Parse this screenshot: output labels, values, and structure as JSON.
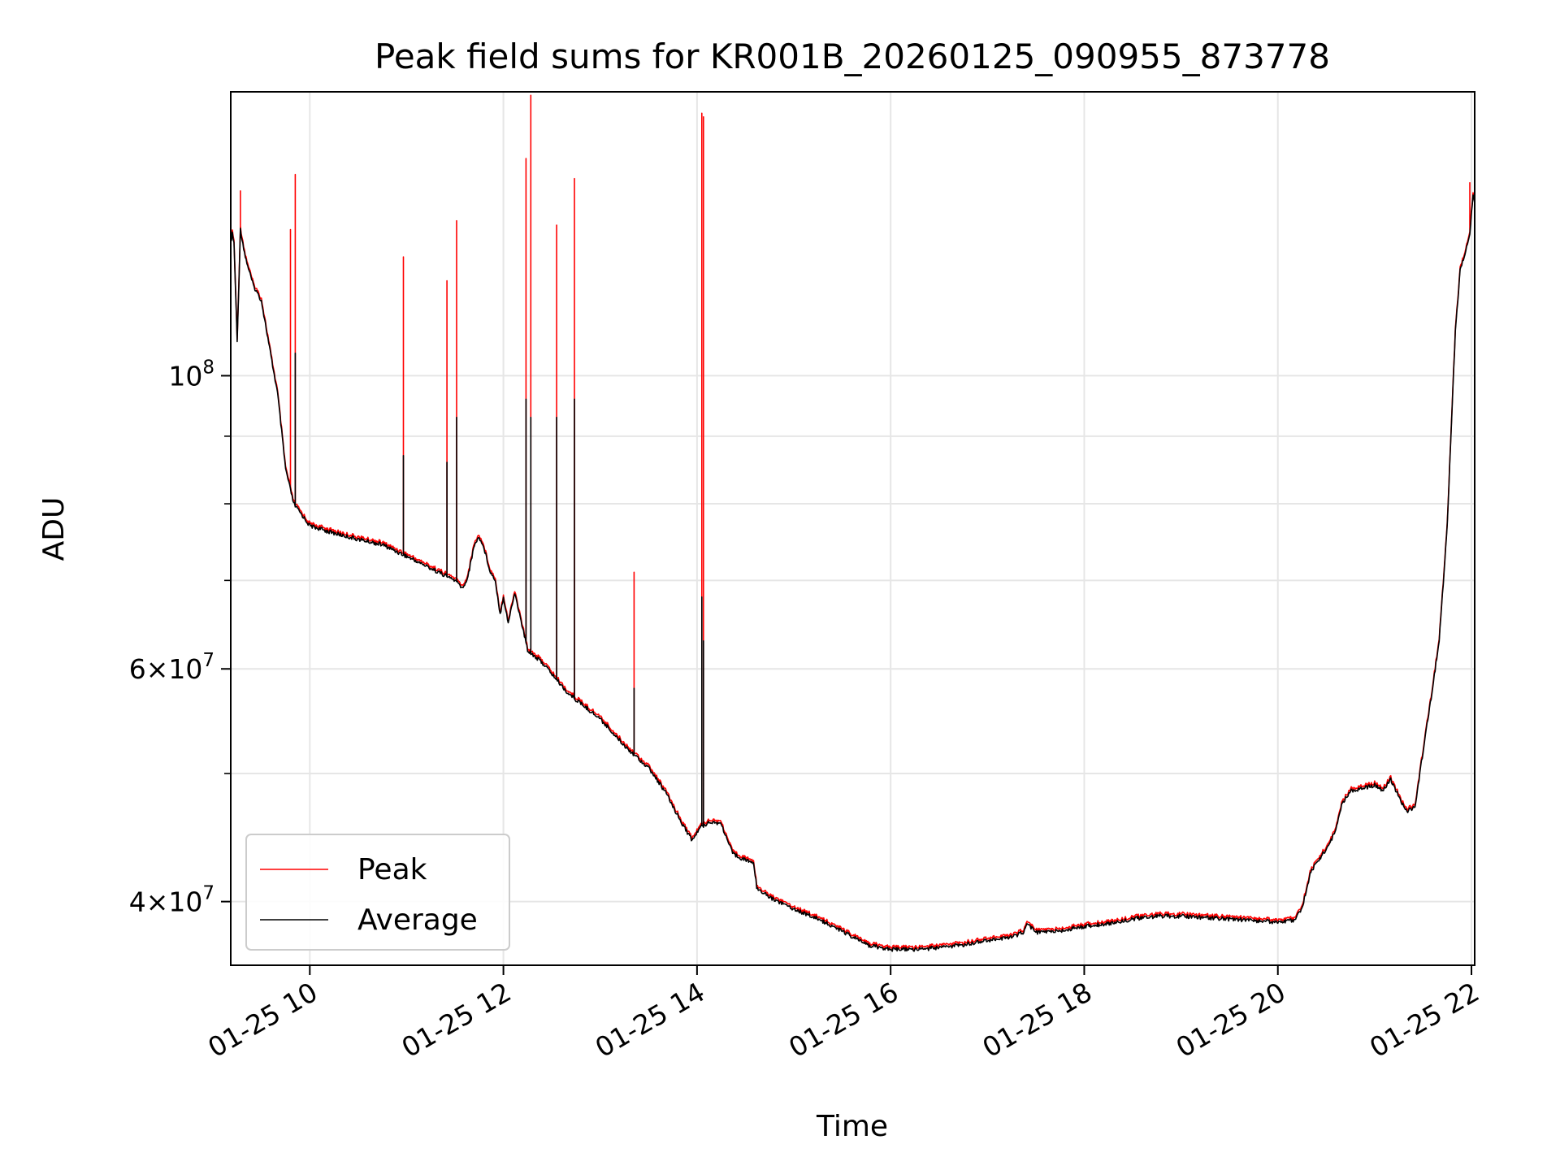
{
  "chart_data": {
    "type": "line",
    "title": "Peak field sums for KR001B_20260125_090955_873778",
    "xlabel": "Time",
    "ylabel": "ADU",
    "yscale": "log",
    "ylim": [
      35800000,
      164000000
    ],
    "xlim": [
      "01-25 09:11",
      "01-25 22:02"
    ],
    "grid": true,
    "legend_position": "lower left",
    "x_ticks": [
      {
        "t": "01-25 10:00",
        "label": "01-25 10"
      },
      {
        "t": "01-25 12:00",
        "label": "01-25 12"
      },
      {
        "t": "01-25 14:00",
        "label": "01-25 14"
      },
      {
        "t": "01-25 16:00",
        "label": "01-25 16"
      },
      {
        "t": "01-25 18:00",
        "label": "01-25 18"
      },
      {
        "t": "01-25 20:00",
        "label": "01-25 20"
      },
      {
        "t": "01-25 22:00",
        "label": "01-25 22"
      }
    ],
    "y_ticks": [
      {
        "value": 40000000,
        "mantissa": "4",
        "exp": "7"
      },
      {
        "value": 60000000,
        "mantissa": "6",
        "exp": "7"
      },
      {
        "value": 100000000,
        "mantissa": "",
        "exp": "8"
      }
    ],
    "y_minor_ticks": [
      50000000,
      70000000,
      80000000,
      90000000
    ],
    "series": [
      {
        "name": "Average",
        "color": "#000000",
        "points": [
          [
            "01-25 09:11",
            126000000
          ],
          [
            "01-25 09:12",
            128000000
          ],
          [
            "01-25 09:13",
            126000000
          ],
          [
            "01-25 09:15",
            106000000
          ],
          [
            "01-25 09:17",
            129000000
          ],
          [
            "01-25 09:20",
            123000000
          ],
          [
            "01-25 09:25",
            117000000
          ],
          [
            "01-25 09:30",
            114000000
          ],
          [
            "01-25 09:35",
            105000000
          ],
          [
            "01-25 09:40",
            97000000
          ],
          [
            "01-25 09:45",
            85000000
          ],
          [
            "01-25 09:50",
            80000000
          ],
          [
            "01-25 10:00",
            77000000
          ],
          [
            "01-25 10:15",
            76000000
          ],
          [
            "01-25 10:30",
            75200000
          ],
          [
            "01-25 10:45",
            74500000
          ],
          [
            "01-25 11:00",
            73000000
          ],
          [
            "01-25 11:15",
            71500000
          ],
          [
            "01-25 11:30",
            70000000
          ],
          [
            "01-25 11:35",
            69000000
          ],
          [
            "01-25 11:38",
            70500000
          ],
          [
            "01-25 11:42",
            74500000
          ],
          [
            "01-25 11:45",
            75500000
          ],
          [
            "01-25 11:48",
            74000000
          ],
          [
            "01-25 11:52",
            71000000
          ],
          [
            "01-25 11:55",
            70000000
          ],
          [
            "01-25 11:58",
            66000000
          ],
          [
            "01-25 12:00",
            68000000
          ],
          [
            "01-25 12:03",
            65000000
          ],
          [
            "01-25 12:07",
            68500000
          ],
          [
            "01-25 12:10",
            66000000
          ],
          [
            "01-25 12:15",
            62000000
          ],
          [
            "01-25 12:25",
            60500000
          ],
          [
            "01-25 12:40",
            57500000
          ],
          [
            "01-25 13:00",
            55000000
          ],
          [
            "01-25 13:15",
            52500000
          ],
          [
            "01-25 13:30",
            50500000
          ],
          [
            "01-25 13:40",
            48500000
          ],
          [
            "01-25 13:50",
            46000000
          ],
          [
            "01-25 13:57",
            44500000
          ],
          [
            "01-25 14:02",
            45500000
          ],
          [
            "01-25 14:08",
            46000000
          ],
          [
            "01-25 14:15",
            45800000
          ],
          [
            "01-25 14:22",
            43500000
          ],
          [
            "01-25 14:30",
            43000000
          ],
          [
            "01-25 14:35",
            42800000
          ],
          [
            "01-25 14:37",
            41000000
          ],
          [
            "01-25 14:45",
            40300000
          ],
          [
            "01-25 15:00",
            39500000
          ],
          [
            "01-25 15:15",
            38800000
          ],
          [
            "01-25 15:30",
            38000000
          ],
          [
            "01-25 15:45",
            37100000
          ],
          [
            "01-25 16:00",
            36800000
          ],
          [
            "01-25 16:15",
            36800000
          ],
          [
            "01-25 16:30",
            36900000
          ],
          [
            "01-25 16:45",
            37100000
          ],
          [
            "01-25 17:00",
            37400000
          ],
          [
            "01-25 17:15",
            37600000
          ],
          [
            "01-25 17:22",
            37900000
          ],
          [
            "01-25 17:25",
            38500000
          ],
          [
            "01-25 17:30",
            37900000
          ],
          [
            "01-25 17:45",
            38000000
          ],
          [
            "01-25 18:00",
            38300000
          ],
          [
            "01-25 18:15",
            38500000
          ],
          [
            "01-25 18:30",
            38800000
          ],
          [
            "01-25 18:45",
            39000000
          ],
          [
            "01-25 19:00",
            39000000
          ],
          [
            "01-25 19:15",
            38900000
          ],
          [
            "01-25 19:30",
            38800000
          ],
          [
            "01-25 19:45",
            38700000
          ],
          [
            "01-25 20:00",
            38600000
          ],
          [
            "01-25 20:10",
            38700000
          ],
          [
            "01-25 20:15",
            39500000
          ],
          [
            "01-25 20:20",
            42000000
          ],
          [
            "01-25 20:25",
            43000000
          ],
          [
            "01-25 20:30",
            43800000
          ],
          [
            "01-25 20:35",
            45000000
          ],
          [
            "01-25 20:40",
            47500000
          ],
          [
            "01-25 20:45",
            48500000
          ],
          [
            "01-25 21:00",
            49000000
          ],
          [
            "01-25 21:05",
            48500000
          ],
          [
            "01-25 21:10",
            49500000
          ],
          [
            "01-25 21:15",
            48000000
          ],
          [
            "01-25 21:20",
            46800000
          ],
          [
            "01-25 21:25",
            47200000
          ],
          [
            "01-25 21:30",
            52000000
          ],
          [
            "01-25 21:35",
            57000000
          ],
          [
            "01-25 21:40",
            63000000
          ],
          [
            "01-25 21:45",
            77000000
          ],
          [
            "01-25 21:50",
            108000000
          ],
          [
            "01-25 21:53",
            120000000
          ],
          [
            "01-25 21:57",
            125000000
          ],
          [
            "01-25 21:59",
            128000000
          ],
          [
            "01-25 22:01",
            137000000
          ],
          [
            "01-25 22:02",
            135000000
          ]
        ],
        "spikes": [
          [
            "01-25 09:51",
            104000000
          ],
          [
            "01-25 10:58",
            87000000
          ],
          [
            "01-25 11:25",
            86000000
          ],
          [
            "01-25 11:31",
            93000000
          ],
          [
            "01-25 12:14",
            96000000
          ],
          [
            "01-25 12:17",
            93000000
          ],
          [
            "01-25 12:33",
            93000000
          ],
          [
            "01-25 12:44",
            96000000
          ],
          [
            "01-25 13:21",
            58000000
          ],
          [
            "01-25 14:03",
            68000000
          ],
          [
            "01-25 14:04",
            63000000
          ]
        ]
      },
      {
        "name": "Peak",
        "color": "#ff0000",
        "offset_ratio": 1.004,
        "spikes": [
          [
            "01-25 09:17",
            138000000
          ],
          [
            "01-25 09:48",
            129000000
          ],
          [
            "01-25 09:51",
            142000000
          ],
          [
            "01-25 10:58",
            123000000
          ],
          [
            "01-25 11:25",
            118000000
          ],
          [
            "01-25 11:31",
            131000000
          ],
          [
            "01-25 12:14",
            146000000
          ],
          [
            "01-25 12:17",
            163000000
          ],
          [
            "01-25 12:33",
            130000000
          ],
          [
            "01-25 12:44",
            141000000
          ],
          [
            "01-25 13:21",
            71000000
          ],
          [
            "01-25 14:03",
            158000000
          ],
          [
            "01-25 14:04",
            157000000
          ],
          [
            "01-25 21:59",
            140000000
          ]
        ]
      }
    ]
  }
}
